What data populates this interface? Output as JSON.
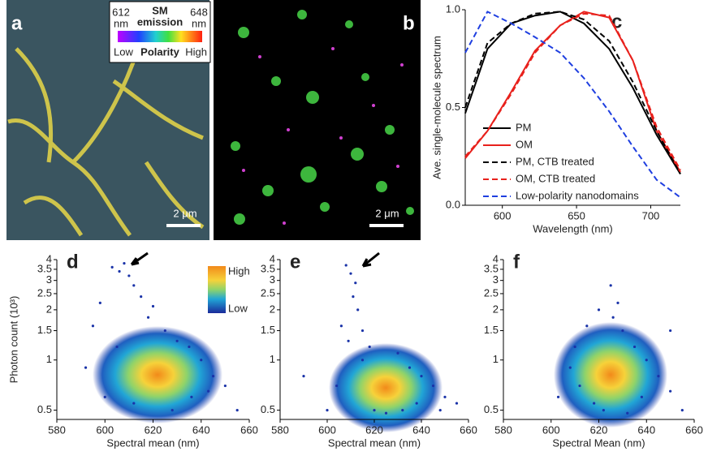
{
  "images": {
    "a": {
      "letter": "a",
      "scale_bar": "2 μm",
      "colorbar": {
        "left": [
          "612",
          "nm"
        ],
        "title": [
          "SM",
          "emission"
        ],
        "right": [
          "648",
          "nm"
        ],
        "low": "Low",
        "label": "Polarity",
        "high": "High"
      }
    },
    "b": {
      "letter": "b",
      "scale_bar": "2 μm"
    }
  },
  "chart_data": [
    {
      "type": "line",
      "panel": "c",
      "xlabel": "Wavelength (nm)",
      "ylabel": "Ave. single-molecule spectrum",
      "x": [
        575,
        590,
        606,
        622,
        639,
        655,
        672,
        688,
        704,
        720
      ],
      "xlim": [
        575,
        720
      ],
      "xticks": [
        600,
        650,
        700
      ],
      "ylim": [
        0,
        1.0
      ],
      "yticks": [
        {
          "value": 0,
          "label": "0.0"
        },
        0.5,
        {
          "value": 1,
          "label": "1.0"
        }
      ],
      "series": [
        {
          "name": "PM",
          "color": "#000000",
          "style": "solid",
          "values": [
            0.47,
            0.8,
            0.93,
            0.97,
            0.99,
            0.93,
            0.8,
            0.6,
            0.36,
            0.16
          ]
        },
        {
          "name": "OM",
          "color": "#e8211c",
          "style": "solid",
          "values": [
            0.24,
            0.38,
            0.58,
            0.79,
            0.92,
            0.99,
            0.96,
            0.74,
            0.38,
            0.17
          ]
        },
        {
          "name": "PM, CTB treated",
          "color": "#000000",
          "style": "dashed",
          "values": [
            0.5,
            0.83,
            0.93,
            0.98,
            0.99,
            0.95,
            0.84,
            0.63,
            0.38,
            0.16
          ]
        },
        {
          "name": "OM, CTB treated",
          "color": "#e8211c",
          "style": "dashed",
          "values": [
            0.25,
            0.38,
            0.57,
            0.78,
            0.92,
            0.98,
            0.97,
            0.74,
            0.4,
            0.18
          ]
        },
        {
          "name": "Low-polarity nanodomains",
          "color": "#1f3fe0",
          "style": "dashed",
          "values": [
            0.78,
            0.99,
            0.93,
            0.86,
            0.78,
            0.65,
            0.48,
            0.3,
            0.13,
            0.04
          ]
        }
      ]
    },
    {
      "type": "scatter",
      "panel": "d",
      "xlabel": "Spectral mean (nm)",
      "ylabel": "Photon count (10³)",
      "colorbar": {
        "high": "High",
        "low": "Low"
      },
      "xlim": [
        580,
        660
      ],
      "xticks": [
        580,
        600,
        620,
        640,
        660
      ],
      "ylim": [
        0.44,
        4
      ],
      "yticks": [
        0.5,
        1,
        1.5,
        2,
        2.5,
        3,
        3.5,
        4
      ],
      "log_y": true,
      "color": "#1a33a8",
      "x": [
        603,
        606,
        608,
        610,
        612,
        598,
        595,
        615,
        618,
        625,
        630,
        635,
        640,
        645,
        650,
        592,
        600,
        605,
        612,
        628,
        636,
        643,
        655,
        620
      ],
      "values": [
        3.6,
        3.4,
        3.8,
        3.2,
        2.8,
        2.2,
        1.6,
        2.4,
        1.8,
        1.5,
        1.3,
        1.2,
        1.0,
        0.8,
        0.7,
        0.9,
        0.6,
        1.2,
        0.55,
        0.5,
        0.6,
        0.65,
        0.5,
        2.1
      ]
    },
    {
      "type": "scatter",
      "panel": "e",
      "xlabel": "Spectral mean (nm)",
      "xlim": [
        580,
        660
      ],
      "xticks": [
        580,
        600,
        620,
        640,
        660
      ],
      "ylim": [
        0.44,
        4
      ],
      "yticks": [
        0.5,
        1,
        1.5,
        2,
        2.5,
        3,
        3.5,
        4
      ],
      "log_y": true,
      "color": "#1a33a8",
      "x": [
        608,
        610,
        612,
        611,
        613,
        606,
        609,
        615,
        618,
        630,
        635,
        640,
        645,
        650,
        655,
        600,
        604,
        620,
        625,
        632,
        638,
        648,
        590,
        615
      ],
      "values": [
        3.7,
        3.3,
        2.9,
        2.4,
        2.0,
        1.6,
        1.3,
        1.5,
        1.2,
        1.1,
        0.9,
        0.8,
        0.7,
        0.6,
        0.55,
        0.5,
        0.7,
        0.5,
        0.48,
        0.5,
        0.55,
        0.5,
        0.8,
        1.0
      ]
    },
    {
      "type": "scatter",
      "panel": "f",
      "xlabel": "Spectral Mean (nm)",
      "xlim": [
        580,
        660
      ],
      "xticks": [
        580,
        600,
        620,
        640,
        660
      ],
      "ylim": [
        0.44,
        4
      ],
      "yticks": [
        0.5,
        1,
        1.5,
        2,
        2.5,
        3,
        3.5,
        4
      ],
      "log_y": true,
      "color": "#1a33a8",
      "x": [
        615,
        620,
        625,
        628,
        630,
        635,
        640,
        645,
        650,
        608,
        612,
        618,
        622,
        632,
        638,
        610,
        650,
        655,
        626,
        603
      ],
      "values": [
        1.6,
        2.0,
        2.8,
        2.2,
        1.5,
        1.2,
        1.0,
        0.8,
        0.65,
        0.9,
        0.7,
        0.55,
        0.5,
        0.48,
        0.6,
        1.2,
        1.5,
        0.5,
        1.8,
        0.6
      ]
    }
  ]
}
